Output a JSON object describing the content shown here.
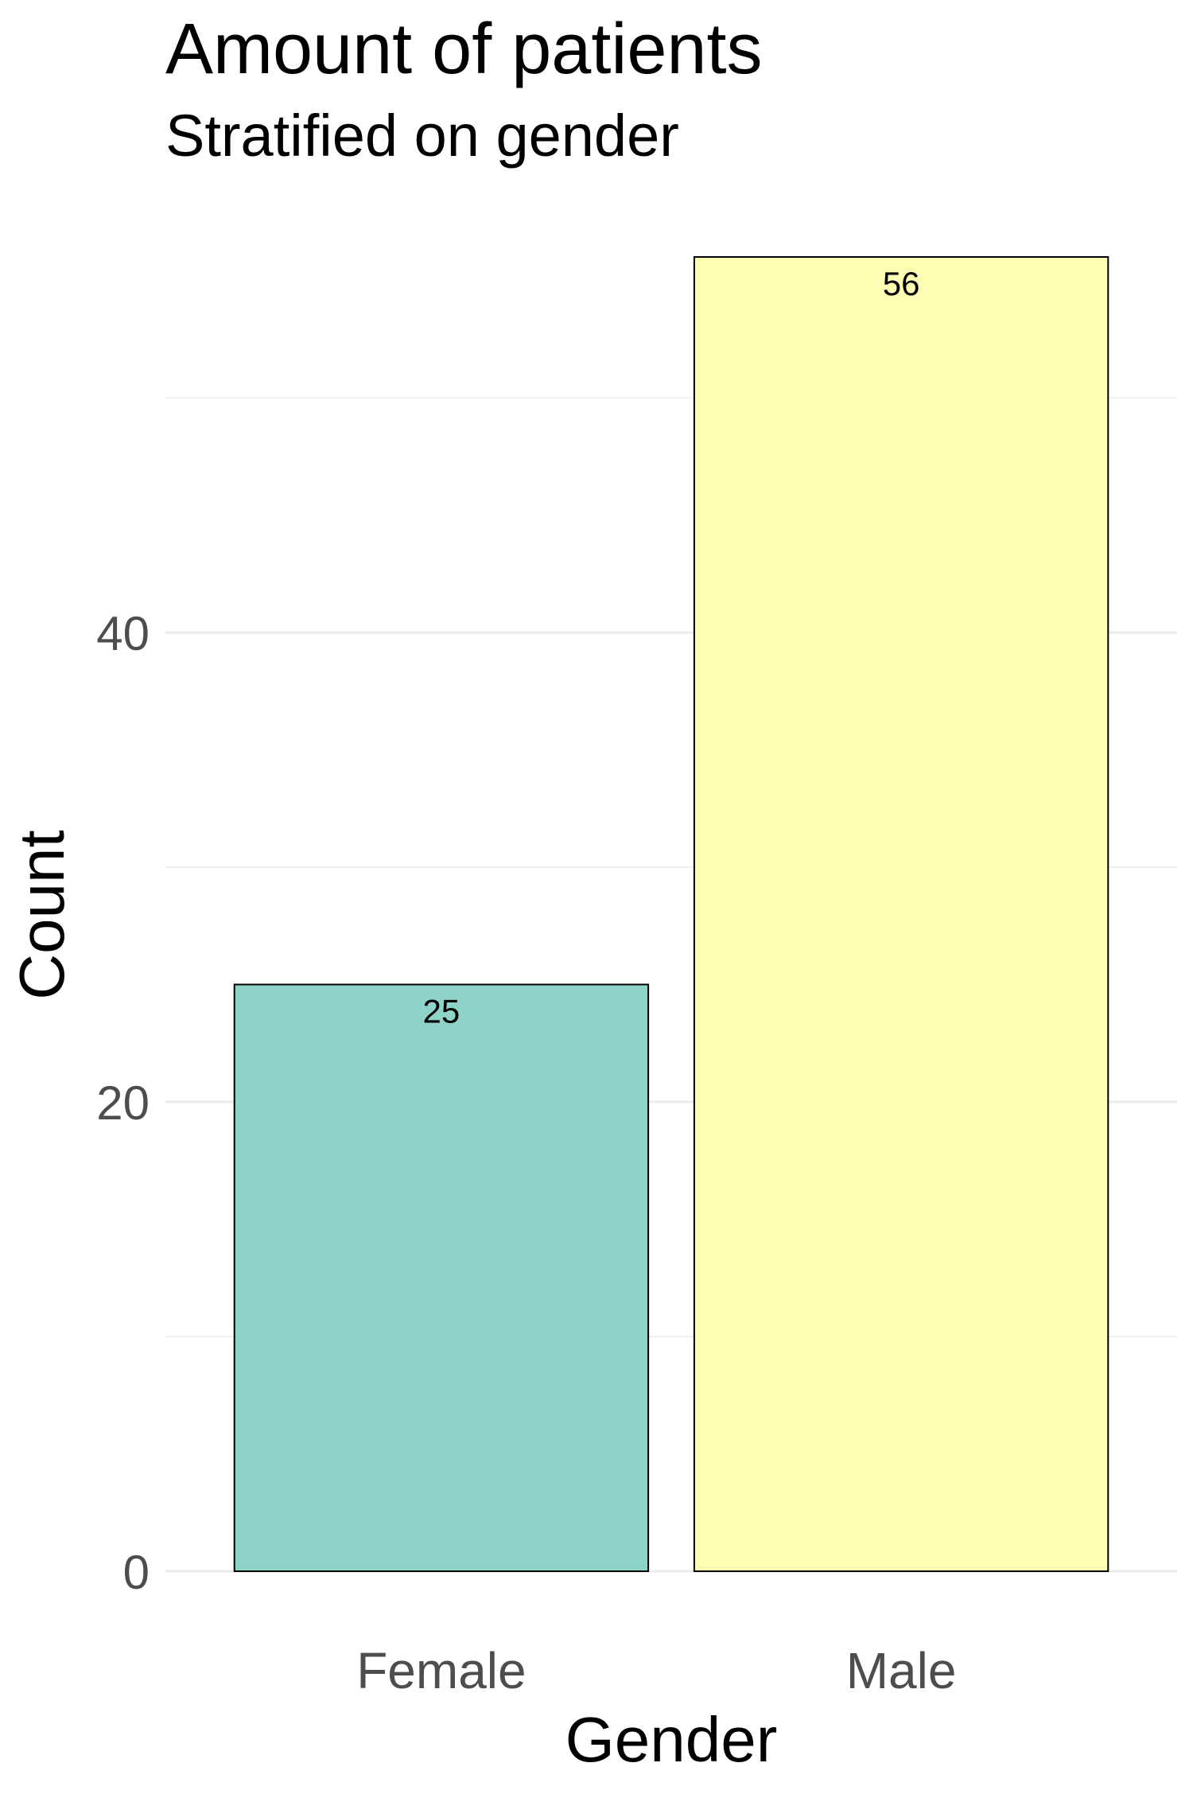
{
  "chart_data": {
    "type": "bar",
    "title": "Amount of patients",
    "subtitle": "Stratified on gender",
    "xlabel": "Gender",
    "ylabel": "Count",
    "categories": [
      "Female",
      "Male"
    ],
    "values": [
      25,
      56
    ],
    "data_labels": [
      "25",
      "56"
    ],
    "colors": [
      "#8DD3C7",
      "#FFFFB3"
    ],
    "bar_outline_color": "#000000",
    "yticks": [
      0,
      20,
      40
    ],
    "ytick_labels": [
      "0",
      "20",
      "40"
    ],
    "ylim": [
      0,
      56
    ],
    "grid": true,
    "legend": "none"
  }
}
